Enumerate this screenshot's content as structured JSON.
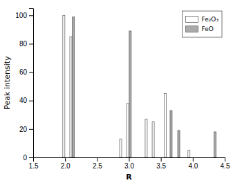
{
  "chart_data": {
    "type": "bar",
    "xlabel": "R",
    "ylabel": "Peak intensity",
    "xlim": [
      1.5,
      4.5
    ],
    "xticks": [
      1.5,
      {
        "value": 2.0,
        "label": "2.0"
      },
      2.5,
      {
        "value": 3.0,
        "label": "3.0"
      },
      3.5,
      {
        "value": 4.0,
        "label": "4.0"
      },
      4.5
    ],
    "ylim": [
      0,
      105
    ],
    "yticks": [
      0,
      20,
      40,
      60,
      80,
      100
    ],
    "series": [
      {
        "name": "Fe₂O₃",
        "color": "#ffffff",
        "x": [
          1.98,
          2.09,
          2.87,
          2.98,
          3.27,
          3.38,
          3.57,
          3.94
        ],
        "values": [
          100,
          85,
          13,
          38,
          27,
          25,
          45,
          5
        ]
      },
      {
        "name": "FeO",
        "color": "#aaaaaa",
        "x": [
          2.13,
          3.02,
          3.66,
          3.78,
          4.35
        ],
        "values": [
          99,
          89,
          33,
          19,
          18
        ]
      }
    ],
    "legend": "upper right",
    "grid": false
  }
}
